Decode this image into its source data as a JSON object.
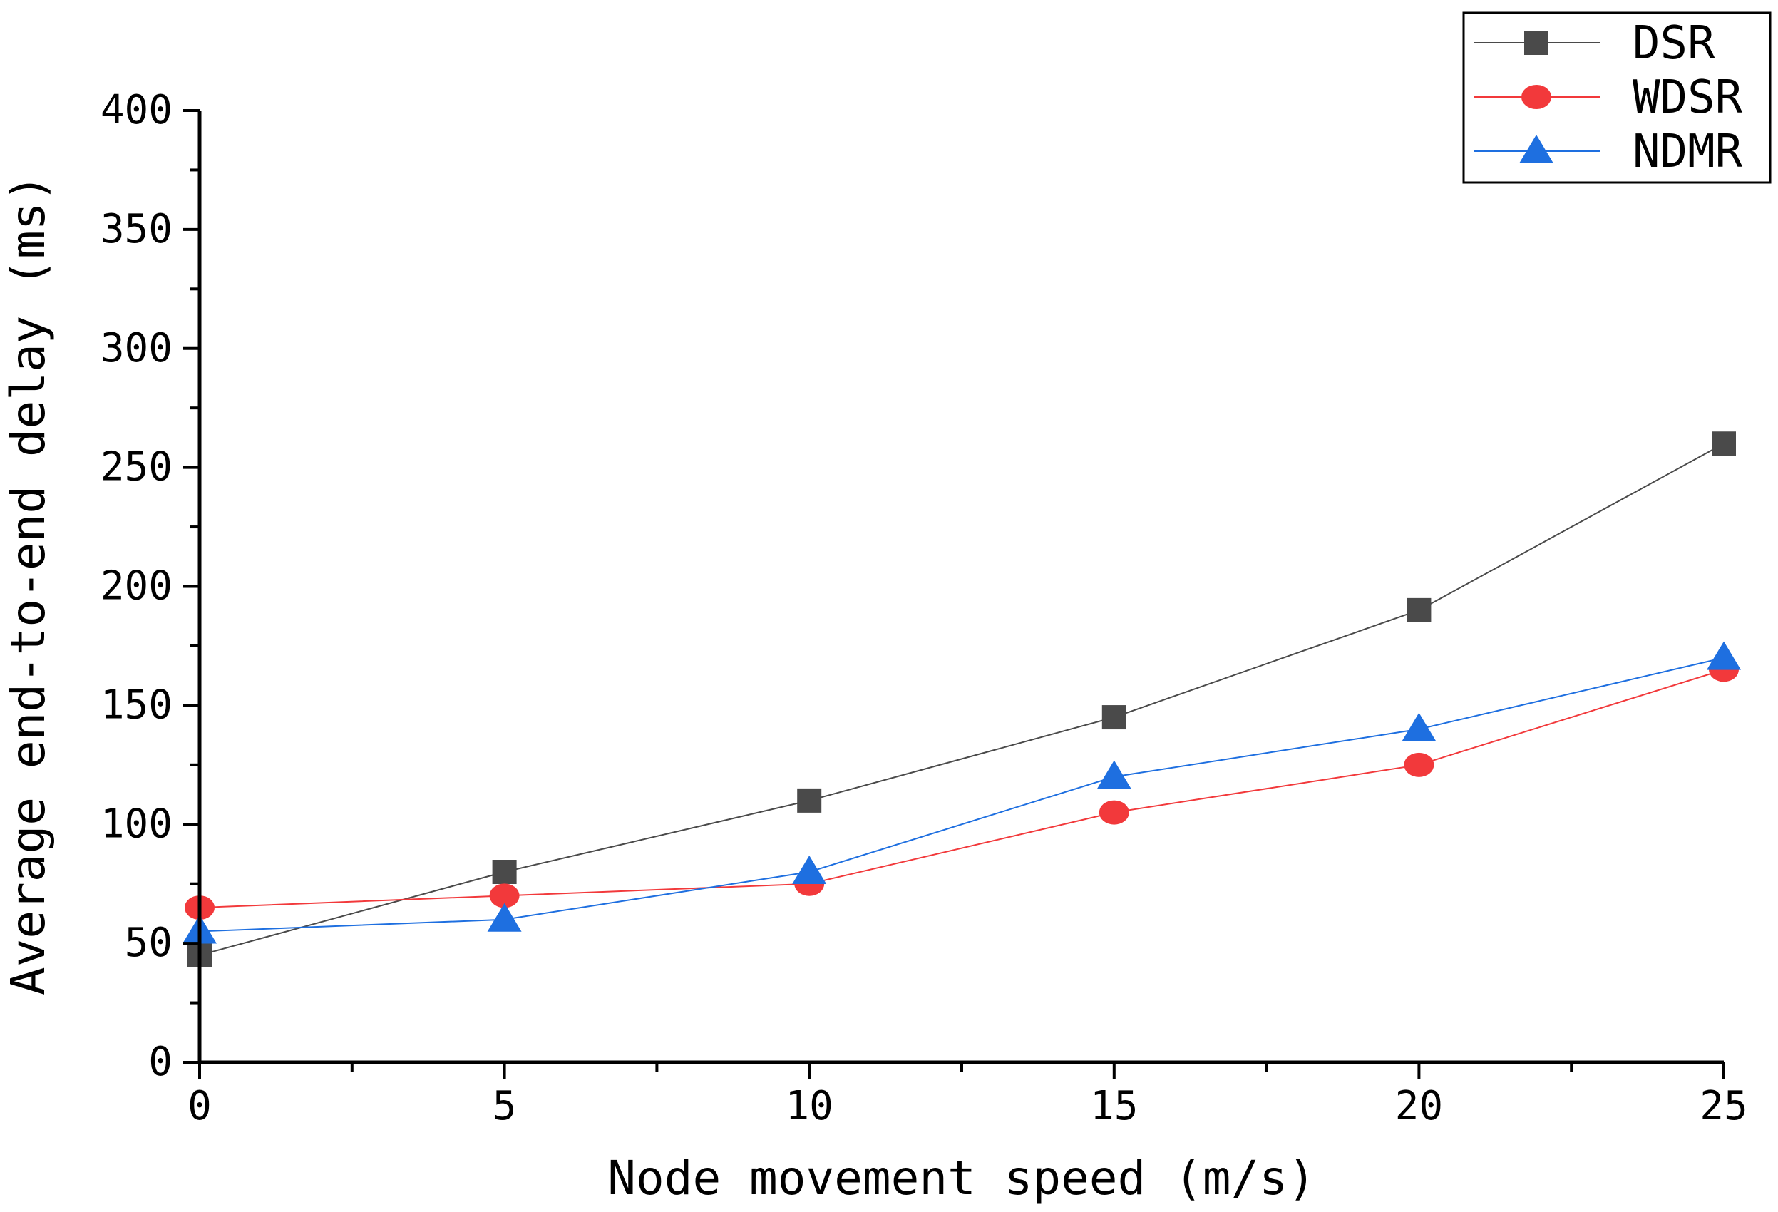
{
  "chart_data": {
    "type": "line",
    "title": "",
    "xlabel": "Node movement speed (m/s)",
    "ylabel": "Average end-to-end delay (ms)",
    "x": [
      0,
      5,
      10,
      15,
      20,
      25
    ],
    "xlim": [
      0,
      25
    ],
    "ylim": [
      0,
      400
    ],
    "xticks": [
      "0",
      "5",
      "10",
      "15",
      "20",
      "25"
    ],
    "yticks": [
      "0",
      "50",
      "100",
      "150",
      "200",
      "250",
      "300",
      "350",
      "400"
    ],
    "grid": false,
    "legend_position": "top-right",
    "series": [
      {
        "name": "DSR",
        "marker": "square",
        "color": "#4a4a4a",
        "values": [
          45,
          80,
          110,
          145,
          190,
          260
        ]
      },
      {
        "name": "WDSR",
        "marker": "circle",
        "color": "#f2393b",
        "values": [
          65,
          70,
          75,
          105,
          125,
          165
        ]
      },
      {
        "name": "NDMR",
        "marker": "triangle",
        "color": "#1e6fe0",
        "values": [
          55,
          60,
          80,
          120,
          140,
          170
        ]
      }
    ]
  }
}
